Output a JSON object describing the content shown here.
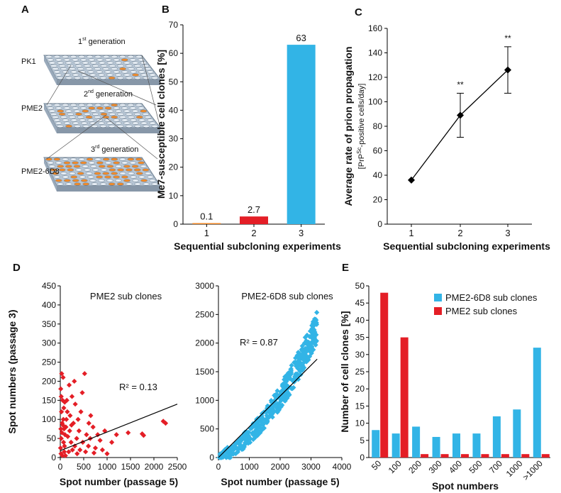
{
  "colors": {
    "blue": "#32b4e6",
    "red": "#e41e26",
    "orange": "#f08a2a",
    "pink": "#e23a4a",
    "axis": "#000000"
  },
  "panelA": {
    "letter": "A",
    "labels": {
      "pk1": "PK1",
      "pme2": "PME2",
      "pme26d8": "PME2-6D8"
    },
    "gen1": {
      "n": "1",
      "sup": "st",
      "txt": " generation"
    },
    "gen2": {
      "n": "2",
      "sup": "nd",
      "txt": " generation"
    },
    "gen3": {
      "n": "3",
      "sup": "rd",
      "txt": " generation"
    }
  },
  "chart_data": [
    {
      "id": "B",
      "letter": "B",
      "type": "bar",
      "categories": [
        "1",
        "2",
        "3"
      ],
      "values": [
        0.1,
        2.7,
        63
      ],
      "value_labels": [
        "0.1",
        "2.7",
        "63"
      ],
      "bar_colors": [
        "#f08a2a",
        "#e41e26",
        "#32b4e6"
      ],
      "ylim": [
        0,
        70
      ],
      "yticks": [
        0,
        10,
        20,
        30,
        40,
        50,
        60,
        70
      ],
      "xlabel": "Sequential subcloning experiments",
      "ylabel": "Me7-susceptible cell clones [%]"
    },
    {
      "id": "C",
      "letter": "C",
      "type": "line",
      "x": [
        "1",
        "2",
        "3"
      ],
      "y": [
        36,
        89,
        126
      ],
      "err": [
        1,
        18,
        19
      ],
      "sig": [
        "",
        "**",
        "**"
      ],
      "ylim": [
        0,
        160
      ],
      "yticks": [
        0,
        20,
        40,
        60,
        80,
        100,
        120,
        140,
        160
      ],
      "xlabel": "Sequential subcloning experiments",
      "ylabel": "Average rate of prion propagation",
      "ylabel2_pre": "[PrP",
      "ylabel2_sup": "Sc",
      "ylabel2_post": "-positive cells/day]"
    },
    {
      "id": "D1",
      "letter": "D",
      "type": "scatter",
      "title": "PME2 sub clones",
      "r2": "R² = 0.13",
      "xlim": [
        0,
        2500
      ],
      "ylim": [
        0,
        450
      ],
      "xticks": [
        0,
        500,
        1000,
        1500,
        2000,
        2500
      ],
      "yticks": [
        0,
        50,
        100,
        150,
        200,
        250,
        300,
        350,
        400,
        450
      ],
      "xlabel": "Spot number (passage 5)",
      "ylabel": "Spot numbers (passage 3)",
      "trend": [
        [
          0,
          18
        ],
        [
          2500,
          140
        ]
      ],
      "points": [
        [
          1450,
          65
        ],
        [
          1750,
          62
        ],
        [
          1780,
          58
        ],
        [
          2200,
          95
        ],
        [
          2250,
          90
        ],
        [
          1200,
          60
        ],
        [
          1100,
          40
        ],
        [
          900,
          20
        ],
        [
          800,
          60
        ],
        [
          650,
          110
        ],
        [
          520,
          220
        ],
        [
          470,
          170
        ],
        [
          440,
          120
        ],
        [
          380,
          100
        ],
        [
          300,
          200
        ],
        [
          250,
          160
        ],
        [
          200,
          70
        ],
        [
          150,
          120
        ],
        [
          120,
          80
        ],
        [
          90,
          30
        ],
        [
          60,
          210
        ],
        [
          50,
          150
        ],
        [
          40,
          90
        ],
        [
          30,
          220
        ],
        [
          20,
          50
        ],
        [
          15,
          10
        ],
        [
          10,
          180
        ],
        [
          70,
          40
        ],
        [
          110,
          5
        ],
        [
          180,
          15
        ],
        [
          230,
          40
        ],
        [
          280,
          90
        ],
        [
          350,
          50
        ],
        [
          420,
          20
        ],
        [
          560,
          60
        ],
        [
          600,
          30
        ],
        [
          700,
          80
        ],
        [
          750,
          25
        ],
        [
          850,
          45
        ],
        [
          950,
          70
        ],
        [
          1000,
          10
        ],
        [
          160,
          55
        ],
        [
          130,
          100
        ],
        [
          100,
          60
        ],
        [
          80,
          75
        ],
        [
          55,
          85
        ],
        [
          35,
          65
        ],
        [
          25,
          120
        ],
        [
          5,
          25
        ],
        [
          45,
          5
        ],
        [
          210,
          110
        ],
        [
          260,
          20
        ],
        [
          320,
          140
        ],
        [
          400,
          70
        ],
        [
          480,
          40
        ],
        [
          540,
          15
        ],
        [
          640,
          50
        ],
        [
          720,
          12
        ],
        [
          610,
          90
        ],
        [
          310,
          30
        ],
        [
          190,
          190
        ],
        [
          140,
          150
        ],
        [
          75,
          130
        ],
        [
          65,
          100
        ],
        [
          95,
          145
        ],
        [
          20,
          160
        ],
        [
          12,
          75
        ],
        [
          85,
          15
        ],
        [
          240,
          85
        ],
        [
          360,
          10
        ]
      ]
    },
    {
      "id": "D2",
      "letter": "",
      "type": "scatter",
      "title": "PME2-6D8 sub clones",
      "r2": "R² = 0.87",
      "xlim": [
        0,
        4000
      ],
      "ylim": [
        0,
        3000
      ],
      "xticks": [
        0,
        1000,
        2000,
        3000,
        4000
      ],
      "yticks": [
        0,
        500,
        1000,
        1500,
        2000,
        2500,
        3000
      ],
      "xlabel": "Spot number (passage 5)",
      "ylabel": "",
      "trend": [
        [
          0,
          0
        ],
        [
          3200,
          1720
        ]
      ]
    },
    {
      "id": "E",
      "letter": "E",
      "type": "bar",
      "categories": [
        "50",
        "100",
        "200",
        "300",
        "400",
        "500",
        "700",
        "1000",
        ">1000"
      ],
      "series": [
        {
          "name": "PME2-6D8 sub clones",
          "color": "#32b4e6",
          "values": [
            8,
            7,
            9,
            6,
            7,
            7,
            12,
            14,
            32
          ]
        },
        {
          "name": "PME2 sub clones",
          "color": "#e41e26",
          "values": [
            48,
            35,
            1,
            1,
            1,
            1,
            1,
            1,
            1
          ]
        }
      ],
      "ylim": [
        0,
        50
      ],
      "yticks": [
        0,
        5,
        10,
        15,
        20,
        25,
        30,
        35,
        40,
        45,
        50
      ],
      "xlabel": "Spot numbers",
      "ylabel": "Number of cell clones [%]",
      "legend": "top-right"
    }
  ]
}
